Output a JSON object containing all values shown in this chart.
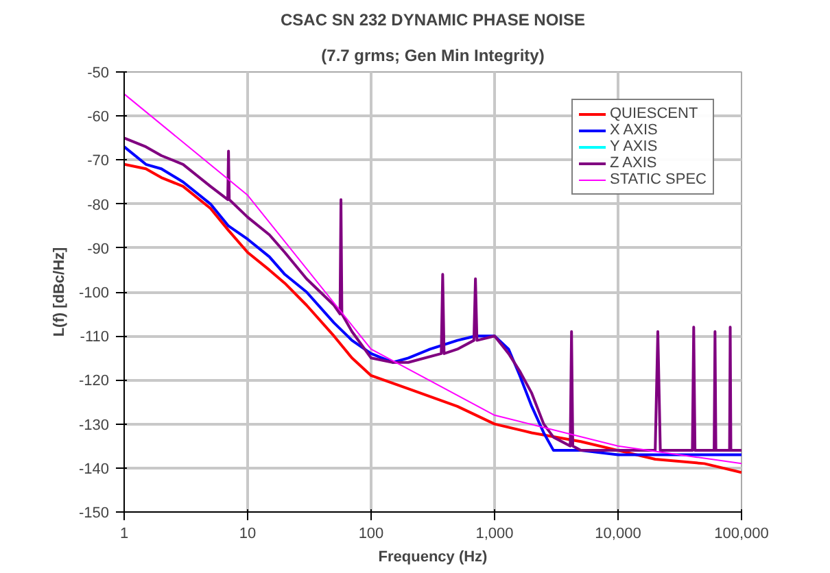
{
  "chart_data": {
    "type": "line",
    "title": "CSAC SN 232 DYNAMIC PHASE NOISE",
    "subtitle": "(7.7 grms; Gen Min Integrity)",
    "xlabel": "Frequency (Hz)",
    "ylabel": "L(f) [dBc/Hz]",
    "log": "x",
    "xlim": [
      1,
      100000
    ],
    "xticks": [
      1,
      10,
      100,
      {
        "value": 1000,
        "label": "1,000"
      },
      {
        "value": 10000,
        "label": "10,000"
      },
      {
        "value": 100000,
        "label": "100,000"
      }
    ],
    "ylim": [
      -150,
      -50
    ],
    "yticks": [
      -150,
      -140,
      -130,
      -120,
      -110,
      -100,
      -90,
      -80,
      -70,
      -60,
      -50
    ],
    "grid": true,
    "legend": "top right",
    "line_style": "solid",
    "series": [
      {
        "name": "QUIESCENT",
        "color": "#ff0000",
        "x": [
          1,
          1.5,
          2,
          3,
          5,
          7,
          10,
          15,
          20,
          30,
          50,
          70,
          100,
          200,
          500,
          1000,
          2000,
          5000,
          10000,
          20000,
          50000,
          100000
        ],
        "values": [
          -71,
          -72,
          -74,
          -76,
          -81,
          -86,
          -91,
          -95,
          -98,
          -103,
          -110,
          -115,
          -119,
          -122,
          -126,
          -130,
          -132,
          -134,
          -136,
          -138,
          -139,
          -141
        ]
      },
      {
        "name": "X AXIS",
        "color": "#0000ff",
        "x": [
          1,
          1.5,
          2,
          3,
          5,
          7,
          10,
          15,
          20,
          30,
          50,
          70,
          100,
          150,
          200,
          300,
          500,
          700,
          1000,
          1300,
          1600,
          2000,
          2500,
          3000,
          5000,
          10000,
          30000,
          100000
        ],
        "values": [
          -67,
          -71,
          -72,
          -75,
          -80,
          -85,
          -88,
          -92,
          -96,
          -100,
          -107,
          -111,
          -114,
          -116,
          -115,
          -113,
          -111,
          -110,
          -110,
          -113,
          -119,
          -126,
          -132,
          -136,
          -136,
          -137,
          -137,
          -137
        ]
      },
      {
        "name": "Y AXIS",
        "color": "#00ffff"
      },
      {
        "name": "Z AXIS",
        "color": "#800080",
        "x": [
          1,
          1.5,
          2,
          3,
          5,
          6.9,
          7.0,
          7.1,
          10,
          15,
          20,
          30,
          50,
          56,
          57,
          58,
          70,
          100,
          150,
          200,
          370,
          380,
          390,
          500,
          680,
          700,
          720,
          1000,
          1300,
          1600,
          2000,
          2500,
          3000,
          4100,
          4200,
          4300,
          5000,
          10000,
          20000,
          21000,
          22000,
          40000,
          41000,
          42000,
          60000,
          61000,
          62000,
          80000,
          81000,
          82000,
          100000
        ],
        "values": [
          -65,
          -67,
          -69,
          -71,
          -76,
          -79,
          -68,
          -79,
          -83,
          -87,
          -91,
          -97,
          -103,
          -105,
          -79,
          -105,
          -109,
          -115,
          -116,
          -116,
          -114,
          -96,
          -114,
          -113,
          -111,
          -97,
          -111,
          -110,
          -114,
          -118,
          -123,
          -130,
          -133,
          -135,
          -109,
          -135,
          -136,
          -136,
          -136,
          -109,
          -136,
          -136,
          -108,
          -136,
          -136,
          -109,
          -136,
          -136,
          -108,
          -136,
          -136
        ]
      },
      {
        "name": "STATIC SPEC",
        "color": "#ff00ff",
        "x": [
          1,
          10,
          100,
          1000,
          10000,
          100000
        ],
        "values": [
          -55,
          -78,
          -113,
          -128,
          -135,
          -139
        ]
      }
    ]
  }
}
